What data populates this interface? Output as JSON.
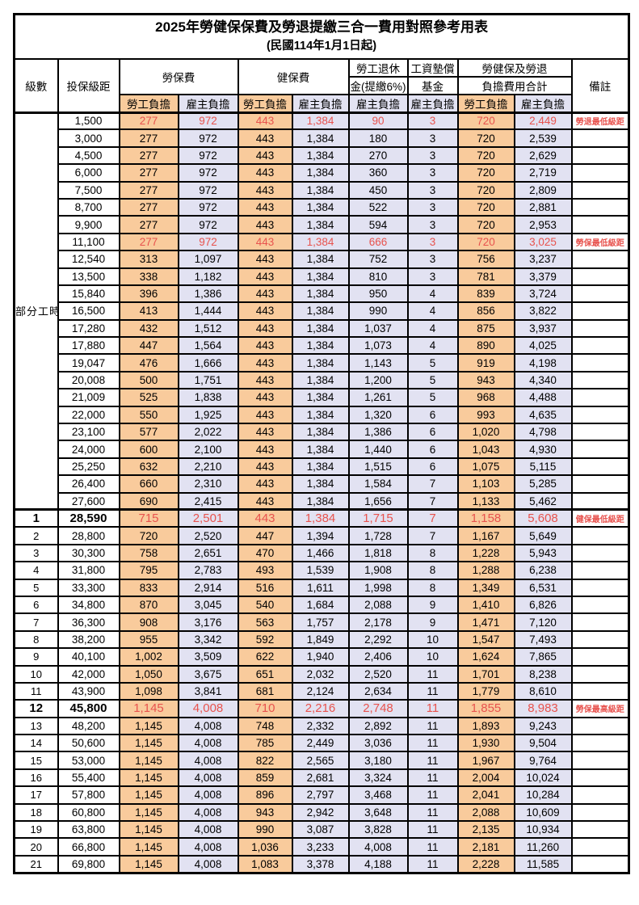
{
  "title": "2025年勞健保保費及勞退提繳三合一費用對照參考用表",
  "subtitle": "(民國114年1月1日起)",
  "header": {
    "level": "級數",
    "bracket": "投保級距",
    "labor_fee": "勞保費",
    "health_fee": "健保費",
    "pension_line1": "勞工退休",
    "pension_line2": "金(提繳6%)",
    "fund_line1": "工資墊償",
    "fund_line2": "基金",
    "total_line1": "勞健保及勞退",
    "total_line2": "負擔費用合計",
    "remark": "備註",
    "employee_share": "勞工負擔",
    "employer_share": "雇主負擔"
  },
  "part_time_label": "部分工時",
  "part_time_row_span": 23,
  "colors": {
    "employee_bg": "#F9CB9C",
    "employer_bg": "#E2E2F2",
    "highlight_text": "#E8534E"
  },
  "rows": [
    {
      "level": "",
      "bracket": "1,500",
      "values": [
        "277",
        "972",
        "443",
        "1,384",
        "90",
        "3",
        "720",
        "2,449"
      ],
      "remark": "勞退最低級距",
      "highlight": true,
      "bold": false
    },
    {
      "level": "",
      "bracket": "3,000",
      "values": [
        "277",
        "972",
        "443",
        "1,384",
        "180",
        "3",
        "720",
        "2,539"
      ],
      "remark": "",
      "highlight": false,
      "bold": false
    },
    {
      "level": "",
      "bracket": "4,500",
      "values": [
        "277",
        "972",
        "443",
        "1,384",
        "270",
        "3",
        "720",
        "2,629"
      ],
      "remark": "",
      "highlight": false,
      "bold": false
    },
    {
      "level": "",
      "bracket": "6,000",
      "values": [
        "277",
        "972",
        "443",
        "1,384",
        "360",
        "3",
        "720",
        "2,719"
      ],
      "remark": "",
      "highlight": false,
      "bold": false
    },
    {
      "level": "",
      "bracket": "7,500",
      "values": [
        "277",
        "972",
        "443",
        "1,384",
        "450",
        "3",
        "720",
        "2,809"
      ],
      "remark": "",
      "highlight": false,
      "bold": false
    },
    {
      "level": "",
      "bracket": "8,700",
      "values": [
        "277",
        "972",
        "443",
        "1,384",
        "522",
        "3",
        "720",
        "2,881"
      ],
      "remark": "",
      "highlight": false,
      "bold": false
    },
    {
      "level": "",
      "bracket": "9,900",
      "values": [
        "277",
        "972",
        "443",
        "1,384",
        "594",
        "3",
        "720",
        "2,953"
      ],
      "remark": "",
      "highlight": false,
      "bold": false
    },
    {
      "level": "",
      "bracket": "11,100",
      "values": [
        "277",
        "972",
        "443",
        "1,384",
        "666",
        "3",
        "720",
        "3,025"
      ],
      "remark": "勞保最低級距",
      "highlight": true,
      "bold": false
    },
    {
      "level": "",
      "bracket": "12,540",
      "values": [
        "313",
        "1,097",
        "443",
        "1,384",
        "752",
        "3",
        "756",
        "3,237"
      ],
      "remark": "",
      "highlight": false,
      "bold": false
    },
    {
      "level": "",
      "bracket": "13,500",
      "values": [
        "338",
        "1,182",
        "443",
        "1,384",
        "810",
        "3",
        "781",
        "3,379"
      ],
      "remark": "",
      "highlight": false,
      "bold": false
    },
    {
      "level": "",
      "bracket": "15,840",
      "values": [
        "396",
        "1,386",
        "443",
        "1,384",
        "950",
        "4",
        "839",
        "3,724"
      ],
      "remark": "",
      "highlight": false,
      "bold": false
    },
    {
      "level": "",
      "bracket": "16,500",
      "values": [
        "413",
        "1,444",
        "443",
        "1,384",
        "990",
        "4",
        "856",
        "3,822"
      ],
      "remark": "",
      "highlight": false,
      "bold": false
    },
    {
      "level": "",
      "bracket": "17,280",
      "values": [
        "432",
        "1,512",
        "443",
        "1,384",
        "1,037",
        "4",
        "875",
        "3,937"
      ],
      "remark": "",
      "highlight": false,
      "bold": false
    },
    {
      "level": "",
      "bracket": "17,880",
      "values": [
        "447",
        "1,564",
        "443",
        "1,384",
        "1,073",
        "4",
        "890",
        "4,025"
      ],
      "remark": "",
      "highlight": false,
      "bold": false
    },
    {
      "level": "",
      "bracket": "19,047",
      "values": [
        "476",
        "1,666",
        "443",
        "1,384",
        "1,143",
        "5",
        "919",
        "4,198"
      ],
      "remark": "",
      "highlight": false,
      "bold": false
    },
    {
      "level": "",
      "bracket": "20,008",
      "values": [
        "500",
        "1,751",
        "443",
        "1,384",
        "1,200",
        "5",
        "943",
        "4,340"
      ],
      "remark": "",
      "highlight": false,
      "bold": false
    },
    {
      "level": "",
      "bracket": "21,009",
      "values": [
        "525",
        "1,838",
        "443",
        "1,384",
        "1,261",
        "5",
        "968",
        "4,488"
      ],
      "remark": "",
      "highlight": false,
      "bold": false
    },
    {
      "level": "",
      "bracket": "22,000",
      "values": [
        "550",
        "1,925",
        "443",
        "1,384",
        "1,320",
        "6",
        "993",
        "4,635"
      ],
      "remark": "",
      "highlight": false,
      "bold": false
    },
    {
      "level": "",
      "bracket": "23,100",
      "values": [
        "577",
        "2,022",
        "443",
        "1,384",
        "1,386",
        "6",
        "1,020",
        "4,798"
      ],
      "remark": "",
      "highlight": false,
      "bold": false
    },
    {
      "level": "",
      "bracket": "24,000",
      "values": [
        "600",
        "2,100",
        "443",
        "1,384",
        "1,440",
        "6",
        "1,043",
        "4,930"
      ],
      "remark": "",
      "highlight": false,
      "bold": false
    },
    {
      "level": "",
      "bracket": "25,250",
      "values": [
        "632",
        "2,210",
        "443",
        "1,384",
        "1,515",
        "6",
        "1,075",
        "5,115"
      ],
      "remark": "",
      "highlight": false,
      "bold": false
    },
    {
      "level": "",
      "bracket": "26,400",
      "values": [
        "660",
        "2,310",
        "443",
        "1,384",
        "1,584",
        "7",
        "1,103",
        "5,285"
      ],
      "remark": "",
      "highlight": false,
      "bold": false
    },
    {
      "level": "",
      "bracket": "27,600",
      "values": [
        "690",
        "2,415",
        "443",
        "1,384",
        "1,656",
        "7",
        "1,133",
        "5,462"
      ],
      "remark": "",
      "highlight": false,
      "bold": false
    },
    {
      "level": "1",
      "bracket": "28,590",
      "values": [
        "715",
        "2,501",
        "443",
        "1,384",
        "1,715",
        "7",
        "1,158",
        "5,608"
      ],
      "remark": "健保最低級距",
      "highlight": true,
      "bold": true
    },
    {
      "level": "2",
      "bracket": "28,800",
      "values": [
        "720",
        "2,520",
        "447",
        "1,394",
        "1,728",
        "7",
        "1,167",
        "5,649"
      ],
      "remark": "",
      "highlight": false,
      "bold": false
    },
    {
      "level": "3",
      "bracket": "30,300",
      "values": [
        "758",
        "2,651",
        "470",
        "1,466",
        "1,818",
        "8",
        "1,228",
        "5,943"
      ],
      "remark": "",
      "highlight": false,
      "bold": false
    },
    {
      "level": "4",
      "bracket": "31,800",
      "values": [
        "795",
        "2,783",
        "493",
        "1,539",
        "1,908",
        "8",
        "1,288",
        "6,238"
      ],
      "remark": "",
      "highlight": false,
      "bold": false
    },
    {
      "level": "5",
      "bracket": "33,300",
      "values": [
        "833",
        "2,914",
        "516",
        "1,611",
        "1,998",
        "8",
        "1,349",
        "6,531"
      ],
      "remark": "",
      "highlight": false,
      "bold": false
    },
    {
      "level": "6",
      "bracket": "34,800",
      "values": [
        "870",
        "3,045",
        "540",
        "1,684",
        "2,088",
        "9",
        "1,410",
        "6,826"
      ],
      "remark": "",
      "highlight": false,
      "bold": false
    },
    {
      "level": "7",
      "bracket": "36,300",
      "values": [
        "908",
        "3,176",
        "563",
        "1,757",
        "2,178",
        "9",
        "1,471",
        "7,120"
      ],
      "remark": "",
      "highlight": false,
      "bold": false
    },
    {
      "level": "8",
      "bracket": "38,200",
      "values": [
        "955",
        "3,342",
        "592",
        "1,849",
        "2,292",
        "10",
        "1,547",
        "7,493"
      ],
      "remark": "",
      "highlight": false,
      "bold": false
    },
    {
      "level": "9",
      "bracket": "40,100",
      "values": [
        "1,002",
        "3,509",
        "622",
        "1,940",
        "2,406",
        "10",
        "1,624",
        "7,865"
      ],
      "remark": "",
      "highlight": false,
      "bold": false
    },
    {
      "level": "10",
      "bracket": "42,000",
      "values": [
        "1,050",
        "3,675",
        "651",
        "2,032",
        "2,520",
        "11",
        "1,701",
        "8,238"
      ],
      "remark": "",
      "highlight": false,
      "bold": false
    },
    {
      "level": "11",
      "bracket": "43,900",
      "values": [
        "1,098",
        "3,841",
        "681",
        "2,124",
        "2,634",
        "11",
        "1,779",
        "8,610"
      ],
      "remark": "",
      "highlight": false,
      "bold": false
    },
    {
      "level": "12",
      "bracket": "45,800",
      "values": [
        "1,145",
        "4,008",
        "710",
        "2,216",
        "2,748",
        "11",
        "1,855",
        "8,983"
      ],
      "remark": "勞保最高級距",
      "highlight": true,
      "bold": true
    },
    {
      "level": "13",
      "bracket": "48,200",
      "values": [
        "1,145",
        "4,008",
        "748",
        "2,332",
        "2,892",
        "11",
        "1,893",
        "9,243"
      ],
      "remark": "",
      "highlight": false,
      "bold": false
    },
    {
      "level": "14",
      "bracket": "50,600",
      "values": [
        "1,145",
        "4,008",
        "785",
        "2,449",
        "3,036",
        "11",
        "1,930",
        "9,504"
      ],
      "remark": "",
      "highlight": false,
      "bold": false
    },
    {
      "level": "15",
      "bracket": "53,000",
      "values": [
        "1,145",
        "4,008",
        "822",
        "2,565",
        "3,180",
        "11",
        "1,967",
        "9,764"
      ],
      "remark": "",
      "highlight": false,
      "bold": false
    },
    {
      "level": "16",
      "bracket": "55,400",
      "values": [
        "1,145",
        "4,008",
        "859",
        "2,681",
        "3,324",
        "11",
        "2,004",
        "10,024"
      ],
      "remark": "",
      "highlight": false,
      "bold": false
    },
    {
      "level": "17",
      "bracket": "57,800",
      "values": [
        "1,145",
        "4,008",
        "896",
        "2,797",
        "3,468",
        "11",
        "2,041",
        "10,284"
      ],
      "remark": "",
      "highlight": false,
      "bold": false
    },
    {
      "level": "18",
      "bracket": "60,800",
      "values": [
        "1,145",
        "4,008",
        "943",
        "2,942",
        "3,648",
        "11",
        "2,088",
        "10,609"
      ],
      "remark": "",
      "highlight": false,
      "bold": false
    },
    {
      "level": "19",
      "bracket": "63,800",
      "values": [
        "1,145",
        "4,008",
        "990",
        "3,087",
        "3,828",
        "11",
        "2,135",
        "10,934"
      ],
      "remark": "",
      "highlight": false,
      "bold": false
    },
    {
      "level": "20",
      "bracket": "66,800",
      "values": [
        "1,145",
        "4,008",
        "1,036",
        "3,233",
        "4,008",
        "11",
        "2,181",
        "11,260"
      ],
      "remark": "",
      "highlight": false,
      "bold": false
    },
    {
      "level": "21",
      "bracket": "69,800",
      "values": [
        "1,145",
        "4,008",
        "1,083",
        "3,378",
        "4,188",
        "11",
        "2,228",
        "11,585"
      ],
      "remark": "",
      "highlight": false,
      "bold": false
    }
  ]
}
